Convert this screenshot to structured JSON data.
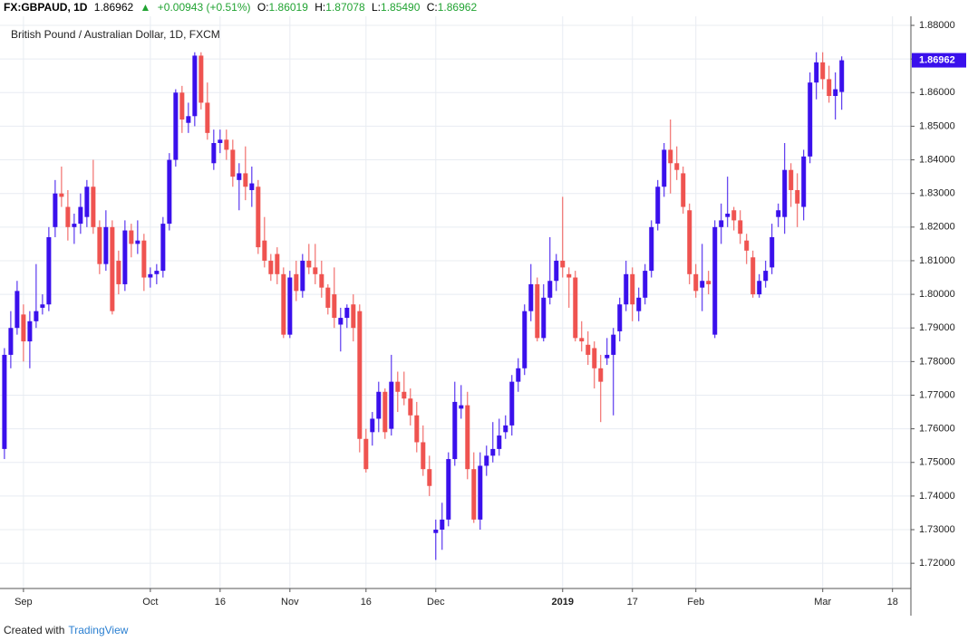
{
  "header": {
    "symbol": "FX:GBPAUD, 1D",
    "last": "1.86962",
    "arrow": "▲",
    "change": "+0.00943 (+0.51%)",
    "open_label": "O:",
    "open": "1.86019",
    "high_label": "H:",
    "high": "1.87078",
    "low_label": "L:",
    "low": "1.85490",
    "close_label": "C:",
    "close": "1.86962"
  },
  "footer": {
    "prefix": "Created with",
    "brand": "TradingView"
  },
  "chart_data": {
    "type": "candlestick",
    "title": "British Pound / Australian Dollar, 1D, FXCM",
    "up_color": "#3a10ec",
    "down_color": "#ef5350",
    "grid": true,
    "ylim": [
      1.7125,
      1.8827
    ],
    "xlim": [
      -0.7,
      142.9
    ],
    "yticks": [
      {
        "value": 1.72,
        "label": "1.72000"
      },
      {
        "value": 1.73,
        "label": "1.73000"
      },
      {
        "value": 1.74,
        "label": "1.74000"
      },
      {
        "value": 1.75,
        "label": "1.75000"
      },
      {
        "value": 1.76,
        "label": "1.76000"
      },
      {
        "value": 1.77,
        "label": "1.77000"
      },
      {
        "value": 1.78,
        "label": "1.78000"
      },
      {
        "value": 1.79,
        "label": "1.79000"
      },
      {
        "value": 1.8,
        "label": "1.80000"
      },
      {
        "value": 1.81,
        "label": "1.81000"
      },
      {
        "value": 1.82,
        "label": "1.82000"
      },
      {
        "value": 1.83,
        "label": "1.83000"
      },
      {
        "value": 1.84,
        "label": "1.84000"
      },
      {
        "value": 1.85,
        "label": "1.85000"
      },
      {
        "value": 1.86,
        "label": "1.86000"
      },
      {
        "value": 1.87,
        "label": "1.87000"
      },
      {
        "value": 1.88,
        "label": "1.88000"
      }
    ],
    "xticks": [
      {
        "value": 3,
        "label": "Sep"
      },
      {
        "value": 23,
        "label": "Oct"
      },
      {
        "value": 34,
        "label": "16"
      },
      {
        "value": 45,
        "label": "Nov"
      },
      {
        "value": 57,
        "label": "16"
      },
      {
        "value": 68,
        "label": "Dec"
      },
      {
        "value": 88,
        "label": "2019"
      },
      {
        "value": 99,
        "label": "17"
      },
      {
        "value": 109,
        "label": "Feb"
      },
      {
        "value": 129,
        "label": "Mar"
      },
      {
        "value": 140,
        "label": "18"
      }
    ],
    "open": [
      1.754,
      1.782,
      1.79,
      1.794,
      1.786,
      1.792,
      1.796,
      1.797,
      1.82,
      1.83,
      1.826,
      1.82,
      1.821,
      1.823,
      1.832,
      1.82,
      1.809,
      1.82,
      1.81,
      1.803,
      1.819,
      1.815,
      1.816,
      1.805,
      1.806,
      1.807,
      1.821,
      1.84,
      1.86,
      1.851,
      1.853,
      1.871,
      1.857,
      1.839,
      1.845,
      1.846,
      1.843,
      1.834,
      1.836,
      1.831,
      1.832,
      1.816,
      1.81,
      1.812,
      1.806,
      1.788,
      1.806,
      1.801,
      1.81,
      1.808,
      1.806,
      1.802,
      1.8,
      1.791,
      1.793,
      1.797,
      1.795,
      1.757,
      1.759,
      1.763,
      1.771,
      1.76,
      1.774,
      1.771,
      1.769,
      1.764,
      1.756,
      1.748,
      1.729,
      1.73,
      1.733,
      1.751,
      1.766,
      1.767,
      1.748,
      1.733,
      1.749,
      1.752,
      1.754,
      1.759,
      1.761,
      1.774,
      1.778,
      1.795,
      1.803,
      1.787,
      1.799,
      1.804,
      1.81,
      1.806,
      1.805,
      1.787,
      1.785,
      1.784,
      1.778,
      1.781,
      1.782,
      1.789,
      1.797,
      1.806,
      1.795,
      1.799,
      1.807,
      1.821,
      1.832,
      1.843,
      1.839,
      1.836,
      1.825,
      1.806,
      1.802,
      1.804,
      1.788,
      1.82,
      1.823,
      1.825,
      1.822,
      1.816,
      1.811,
      1.8,
      1.804,
      1.808,
      1.823,
      1.823,
      1.837,
      1.831,
      1.826,
      1.841,
      1.863,
      1.869,
      1.864,
      1.859,
      1.86019
    ],
    "high": [
      1.784,
      1.795,
      1.804,
      1.797,
      1.795,
      1.809,
      1.8,
      1.82,
      1.834,
      1.838,
      1.831,
      1.824,
      1.83,
      1.834,
      1.84,
      1.822,
      1.825,
      1.822,
      1.813,
      1.822,
      1.821,
      1.822,
      1.818,
      1.808,
      1.809,
      1.823,
      1.842,
      1.861,
      1.862,
      1.857,
      1.872,
      1.872,
      1.863,
      1.849,
      1.849,
      1.849,
      1.846,
      1.839,
      1.844,
      1.838,
      1.834,
      1.823,
      1.812,
      1.814,
      1.808,
      1.807,
      1.81,
      1.812,
      1.815,
      1.815,
      1.81,
      1.803,
      1.808,
      1.796,
      1.797,
      1.8,
      1.797,
      1.76,
      1.765,
      1.774,
      1.772,
      1.782,
      1.777,
      1.777,
      1.772,
      1.768,
      1.761,
      1.752,
      1.733,
      1.738,
      1.753,
      1.774,
      1.773,
      1.771,
      1.753,
      1.753,
      1.755,
      1.762,
      1.763,
      1.764,
      1.776,
      1.781,
      1.797,
      1.809,
      1.805,
      1.803,
      1.817,
      1.812,
      1.829,
      1.808,
      1.807,
      1.792,
      1.789,
      1.786,
      1.782,
      1.787,
      1.79,
      1.799,
      1.81,
      1.808,
      1.802,
      1.809,
      1.822,
      1.834,
      1.845,
      1.852,
      1.844,
      1.838,
      1.827,
      1.809,
      1.815,
      1.807,
      1.822,
      1.827,
      1.835,
      1.826,
      1.825,
      1.818,
      1.813,
      1.806,
      1.81,
      1.821,
      1.827,
      1.845,
      1.839,
      1.836,
      1.843,
      1.866,
      1.872,
      1.872,
      1.868,
      1.866,
      1.87078
    ],
    "low": [
      1.751,
      1.778,
      1.788,
      1.78,
      1.778,
      1.79,
      1.794,
      1.795,
      1.817,
      1.826,
      1.816,
      1.815,
      1.818,
      1.82,
      1.818,
      1.806,
      1.807,
      1.794,
      1.8,
      1.801,
      1.811,
      1.812,
      1.801,
      1.802,
      1.803,
      1.805,
      1.819,
      1.838,
      1.848,
      1.848,
      1.85,
      1.855,
      1.846,
      1.837,
      1.842,
      1.84,
      1.832,
      1.825,
      1.828,
      1.826,
      1.812,
      1.808,
      1.804,
      1.803,
      1.787,
      1.787,
      1.798,
      1.799,
      1.806,
      1.803,
      1.799,
      1.794,
      1.79,
      1.783,
      1.79,
      1.786,
      1.753,
      1.747,
      1.755,
      1.759,
      1.757,
      1.758,
      1.765,
      1.767,
      1.761,
      1.753,
      1.746,
      1.74,
      1.721,
      1.724,
      1.731,
      1.749,
      1.763,
      1.745,
      1.732,
      1.73,
      1.746,
      1.75,
      1.752,
      1.757,
      1.758,
      1.771,
      1.776,
      1.792,
      1.786,
      1.786,
      1.797,
      1.801,
      1.805,
      1.796,
      1.786,
      1.783,
      1.779,
      1.772,
      1.762,
      1.779,
      1.764,
      1.786,
      1.795,
      1.792,
      1.792,
      1.797,
      1.805,
      1.819,
      1.829,
      1.83,
      1.834,
      1.824,
      1.803,
      1.799,
      1.795,
      1.8,
      1.787,
      1.815,
      1.82,
      1.819,
      1.815,
      1.809,
      1.799,
      1.799,
      1.802,
      1.806,
      1.82,
      1.818,
      1.826,
      1.82,
      1.822,
      1.839,
      1.858,
      1.861,
      1.857,
      1.852,
      1.8549
    ],
    "close": [
      1.782,
      1.79,
      1.801,
      1.786,
      1.792,
      1.795,
      1.797,
      1.817,
      1.83,
      1.829,
      1.82,
      1.821,
      1.826,
      1.832,
      1.82,
      1.809,
      1.82,
      1.795,
      1.803,
      1.819,
      1.815,
      1.816,
      1.805,
      1.806,
      1.807,
      1.821,
      1.84,
      1.86,
      1.852,
      1.853,
      1.871,
      1.857,
      1.848,
      1.845,
      1.846,
      1.843,
      1.835,
      1.836,
      1.832,
      1.833,
      1.814,
      1.81,
      1.806,
      1.806,
      1.788,
      1.805,
      1.801,
      1.81,
      1.808,
      1.806,
      1.802,
      1.796,
      1.793,
      1.793,
      1.796,
      1.79,
      1.757,
      1.748,
      1.763,
      1.771,
      1.759,
      1.774,
      1.771,
      1.769,
      1.764,
      1.756,
      1.748,
      1.743,
      1.73,
      1.733,
      1.751,
      1.768,
      1.767,
      1.748,
      1.733,
      1.749,
      1.752,
      1.754,
      1.758,
      1.761,
      1.774,
      1.778,
      1.795,
      1.803,
      1.787,
      1.799,
      1.804,
      1.81,
      1.808,
      1.805,
      1.787,
      1.786,
      1.782,
      1.778,
      1.774,
      1.782,
      1.788,
      1.797,
      1.806,
      1.797,
      1.799,
      1.807,
      1.82,
      1.832,
      1.843,
      1.839,
      1.837,
      1.826,
      1.806,
      1.801,
      1.804,
      1.803,
      1.82,
      1.822,
      1.824,
      1.822,
      1.818,
      1.813,
      1.8,
      1.804,
      1.807,
      1.817,
      1.825,
      1.837,
      1.831,
      1.827,
      1.841,
      1.863,
      1.869,
      1.864,
      1.859,
      1.861,
      1.86962
    ]
  }
}
